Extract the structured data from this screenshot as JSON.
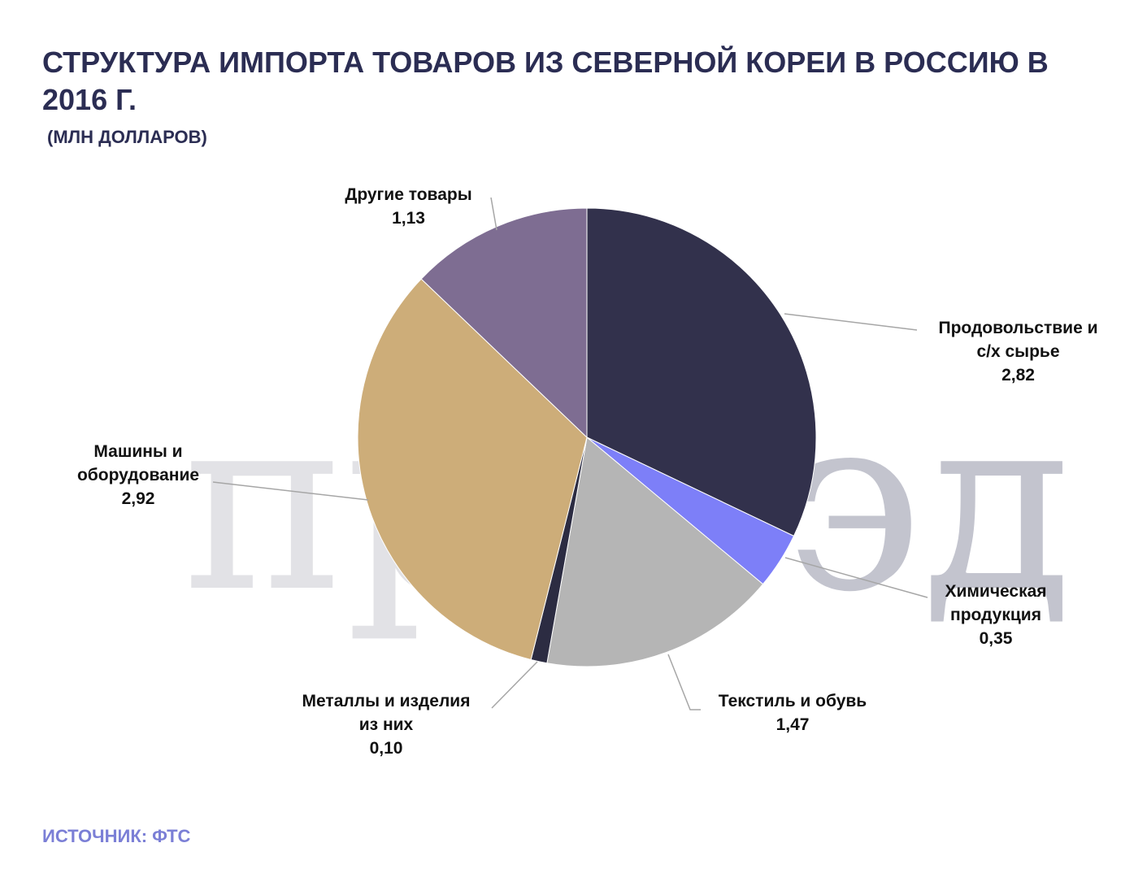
{
  "title": "СТРУКТУРА ИМПОРТА ТОВАРОВ ИЗ СЕВЕРНОЙ КОРЕИ В РОССИЮ В 2016 Г.",
  "subtitle": "(МЛН ДОЛЛАРОВ)",
  "source": "ИСТОЧНИК: ФТС",
  "watermark": {
    "light": "про",
    "dark": "вэд"
  },
  "chart_data": {
    "type": "pie",
    "title": "СТРУКТУРА ИМПОРТА ТОВАРОВ ИЗ СЕВЕРНОЙ КОРЕИ В РОССИЮ В 2016 Г.",
    "unit": "(МЛН ДОЛЛАРОВ)",
    "start": "12 o'clock, clockwise",
    "slices": [
      {
        "label": "Продовольствие и с/х сырье",
        "lines": [
          "Продовольствие  и",
          "с/х сырье"
        ],
        "value": 2.82,
        "display": "2,82",
        "color": "#32314c"
      },
      {
        "label": "Химическая продукция",
        "lines": [
          "Химическая",
          "продукция"
        ],
        "value": 0.35,
        "display": "0,35",
        "color": "#7d7ff8"
      },
      {
        "label": "Текстиль и обувь",
        "lines": [
          "Текстиль и обувь"
        ],
        "value": 1.47,
        "display": "1,47",
        "color": "#b5b5b5"
      },
      {
        "label": "Металлы и изделия из них",
        "lines": [
          "Металлы и изделия",
          "из них"
        ],
        "value": 0.1,
        "display": "0,10",
        "color": "#2c2c42"
      },
      {
        "label": "Машины и оборудование",
        "lines": [
          "Машины и",
          "оборудование"
        ],
        "value": 2.92,
        "display": "2,92",
        "color": "#cdad79"
      },
      {
        "label": "Другие товары",
        "lines": [
          "Другие товары"
        ],
        "value": 1.13,
        "display": "1,13",
        "color": "#7e6d92"
      }
    ]
  }
}
